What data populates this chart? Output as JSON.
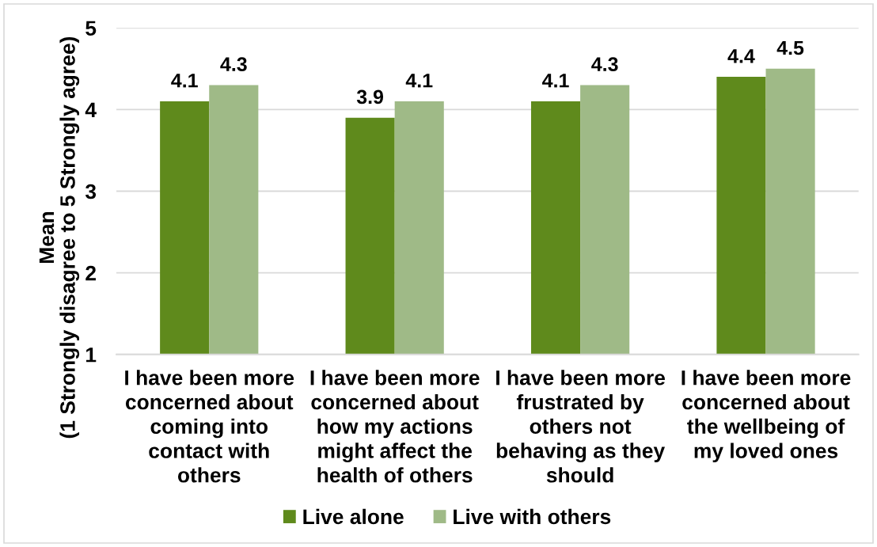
{
  "chart_data": {
    "type": "bar",
    "categories": [
      "I have been more\nconcerned about\ncoming into\ncontact with\nothers",
      "I have been more\nconcerned about\nhow my actions\nmight affect the\nhealth of others",
      "I have been more\nfrustrated by\nothers not\nbehaving as they\nshould",
      "I have been more\nconcerned about\nthe wellbeing of\nmy loved ones"
    ],
    "series": [
      {
        "name": "Live alone",
        "color": "#5f8a1c",
        "values": [
          4.1,
          3.9,
          4.1,
          4.4
        ]
      },
      {
        "name": "Live with others",
        "color": "#9fba87",
        "values": [
          4.3,
          4.1,
          4.3,
          4.5
        ]
      }
    ],
    "ylabel": "Mean\n(1 Strongly disagree to 5 Strongly agree)",
    "ylim": [
      1,
      5
    ],
    "yticks": [
      1,
      2,
      3,
      4,
      5
    ],
    "grid": "y",
    "legend": "bottom",
    "data_labels": true
  }
}
